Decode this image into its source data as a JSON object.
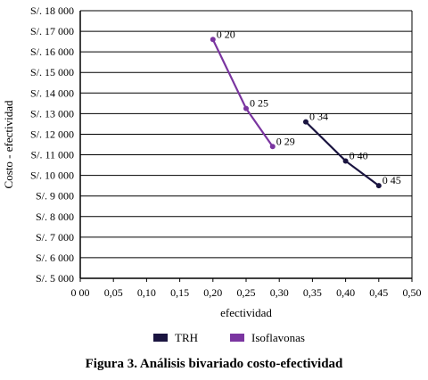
{
  "chart_data": {
    "type": "line",
    "x_axis": {
      "label": "efectividad",
      "range": [
        0,
        0.5
      ],
      "ticks": [
        "0 00",
        "0,05",
        "0,10",
        "0,15",
        "0,20",
        "0,25",
        "0,30",
        "0,35",
        "0,40",
        "0,45",
        "0,50"
      ]
    },
    "y_axis": {
      "label": "Costo - efectividad",
      "range": [
        5000,
        18000
      ],
      "ticks": [
        "S/. 5 000",
        "S/. 6 000",
        "S/. 7 000",
        "S/. 8 000",
        "S/. 9 000",
        "S/. 10 000",
        "S/. 11 000",
        "S/. 12 000",
        "S/. 13 000",
        "S/. 14 000",
        "S/. 15 000",
        "S/. 16 000",
        "S/. 17 000",
        "S/. 18 000"
      ]
    },
    "grid": "horizontal",
    "legend_position": "bottom",
    "series": [
      {
        "name": "TRH",
        "color": "#1a1440",
        "points": [
          {
            "x": 0.34,
            "y": 12600,
            "label": "0 34"
          },
          {
            "x": 0.4,
            "y": 10700,
            "label": "0 40"
          },
          {
            "x": 0.45,
            "y": 9500,
            "label": "0 45"
          }
        ]
      },
      {
        "name": "Isoflavonas",
        "color": "#7a35a0",
        "points": [
          {
            "x": 0.2,
            "y": 16600,
            "label": "0 20"
          },
          {
            "x": 0.25,
            "y": 13250,
            "label": "0 25"
          },
          {
            "x": 0.29,
            "y": 11400,
            "label": "0 29"
          }
        ]
      }
    ]
  },
  "caption": "Figura  3.  Análisis bivariado costo-efectividad"
}
